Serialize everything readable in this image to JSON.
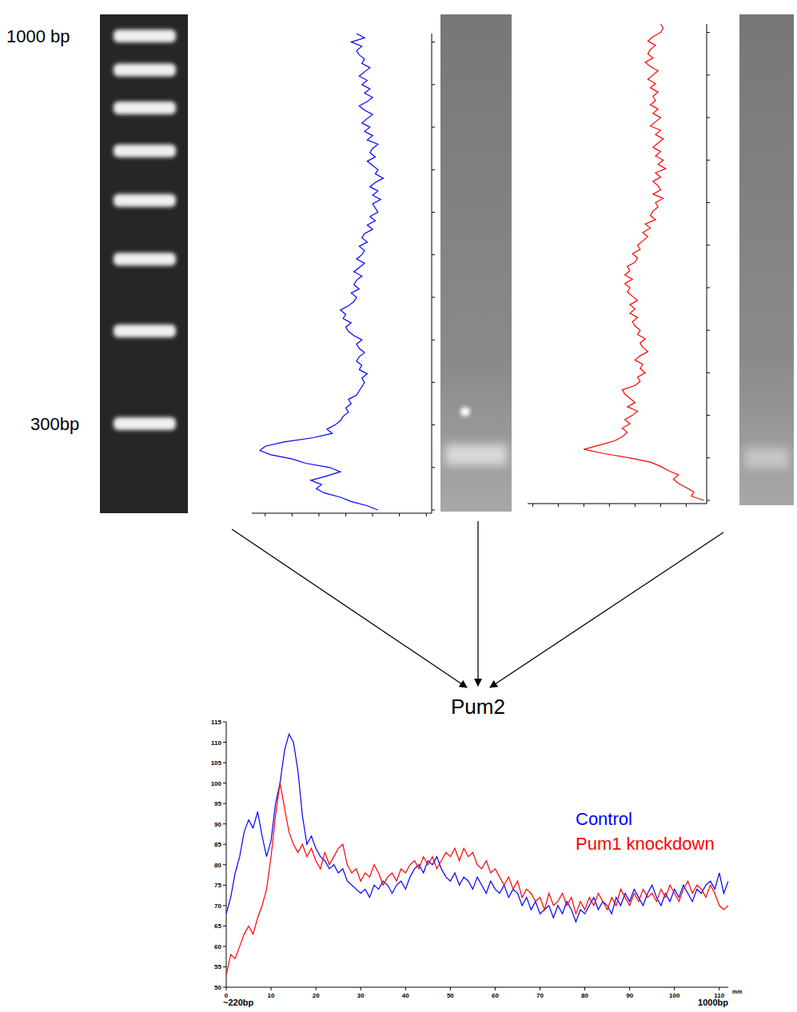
{
  "gel": {
    "ladder_labels": [
      {
        "text": "1000 bp",
        "bp": 1000
      },
      {
        "text": "300bp",
        "bp": 300
      }
    ],
    "ladder_bands": [
      1000,
      900,
      800,
      700,
      600,
      500,
      400,
      300
    ]
  },
  "profiles": [
    {
      "series": 0,
      "intensity_lim": [
        115,
        48
      ],
      "position_lim": [
        0,
        112
      ],
      "intensity_ticks": [
        50,
        60,
        70,
        80,
        90,
        100,
        110
      ],
      "position_ticks": [
        0,
        10,
        20,
        30,
        40,
        50,
        60,
        70,
        80,
        90,
        100,
        110
      ],
      "tick_labels": false
    },
    {
      "series": 1,
      "intensity_lim": [
        122,
        52
      ],
      "position_lim": [
        0,
        112
      ],
      "intensity_ticks": [
        60,
        70,
        80,
        90,
        100,
        110,
        120
      ],
      "position_ticks": [
        0,
        10,
        20,
        30,
        40,
        50,
        60,
        70,
        80,
        90,
        100,
        110
      ],
      "tick_labels": false
    }
  ],
  "chart_data": {
    "type": "line",
    "title": "Pum2",
    "xlabel": "mm",
    "annotations": [
      {
        "text": "~220bp",
        "x": 0
      },
      {
        "text": "1000bp",
        "x": 112
      }
    ],
    "x": [
      0,
      1,
      2,
      3,
      4,
      5,
      6,
      7,
      8,
      9,
      10,
      11,
      12,
      13,
      14,
      15,
      16,
      17,
      18,
      19,
      20,
      21,
      22,
      23,
      24,
      25,
      26,
      27,
      28,
      29,
      30,
      31,
      32,
      33,
      34,
      35,
      36,
      37,
      38,
      39,
      40,
      41,
      42,
      43,
      44,
      45,
      46,
      47,
      48,
      49,
      50,
      51,
      52,
      53,
      54,
      55,
      56,
      57,
      58,
      59,
      60,
      61,
      62,
      63,
      64,
      65,
      66,
      67,
      68,
      69,
      70,
      71,
      72,
      73,
      74,
      75,
      76,
      77,
      78,
      79,
      80,
      81,
      82,
      83,
      84,
      85,
      86,
      87,
      88,
      89,
      90,
      91,
      92,
      93,
      94,
      95,
      96,
      97,
      98,
      99,
      100,
      101,
      102,
      103,
      104,
      105,
      106,
      107,
      108,
      109,
      110,
      111,
      112
    ],
    "series": [
      {
        "name": "Control",
        "color": "#0000ff",
        "values": [
          68,
          72,
          78,
          82,
          88,
          91,
          89,
          93,
          87,
          82,
          86,
          95,
          100,
          108,
          112,
          110,
          103,
          92,
          85,
          87,
          84,
          82,
          81,
          79,
          80,
          78,
          79,
          76,
          75,
          74,
          73,
          74,
          72,
          75,
          74,
          76,
          75,
          73,
          75,
          76,
          74,
          77,
          79,
          80,
          78,
          81,
          80,
          82,
          79,
          77,
          76,
          78,
          75,
          77,
          76,
          74,
          77,
          75,
          73,
          76,
          74,
          73,
          75,
          72,
          74,
          73,
          70,
          72,
          69,
          71,
          68,
          69,
          70,
          67,
          70,
          68,
          71,
          69,
          66,
          69,
          68,
          70,
          72,
          69,
          71,
          70,
          68,
          72,
          70,
          73,
          71,
          74,
          72,
          70,
          73,
          75,
          72,
          70,
          73,
          71,
          74,
          72,
          75,
          73,
          71,
          74,
          73,
          75,
          76,
          74,
          78,
          73,
          76
        ]
      },
      {
        "name": "Pum1 knockdown",
        "color": "#ff0000",
        "values": [
          53,
          58,
          57,
          60,
          63,
          65,
          63,
          67,
          70,
          74,
          82,
          92,
          100,
          94,
          88,
          85,
          83,
          85,
          82,
          84,
          81,
          79,
          83,
          80,
          82,
          84,
          85,
          80,
          78,
          79,
          76,
          78,
          77,
          80,
          78,
          75,
          77,
          78,
          76,
          79,
          78,
          80,
          81,
          79,
          82,
          80,
          82,
          79,
          81,
          83,
          82,
          84,
          81,
          84,
          82,
          83,
          80,
          79,
          81,
          78,
          79,
          77,
          75,
          77,
          74,
          76,
          72,
          74,
          73,
          71,
          72,
          69,
          73,
          70,
          71,
          73,
          70,
          72,
          68,
          71,
          69,
          72,
          70,
          73,
          71,
          69,
          72,
          70,
          74,
          72,
          70,
          73,
          71,
          74,
          72,
          73,
          71,
          74,
          72,
          75,
          73,
          71,
          74,
          76,
          73,
          75,
          74,
          72,
          75,
          73,
          70,
          69,
          70
        ]
      }
    ],
    "xlim": [
      0,
      112
    ],
    "xticks": [
      0,
      10,
      20,
      30,
      40,
      50,
      60,
      70,
      80,
      90,
      100,
      110
    ],
    "ylim": [
      50,
      115
    ],
    "yticks": [
      50,
      55,
      60,
      65,
      70,
      75,
      80,
      85,
      90,
      95,
      100,
      105,
      110,
      115
    ],
    "legend": "right",
    "grid": false
  }
}
